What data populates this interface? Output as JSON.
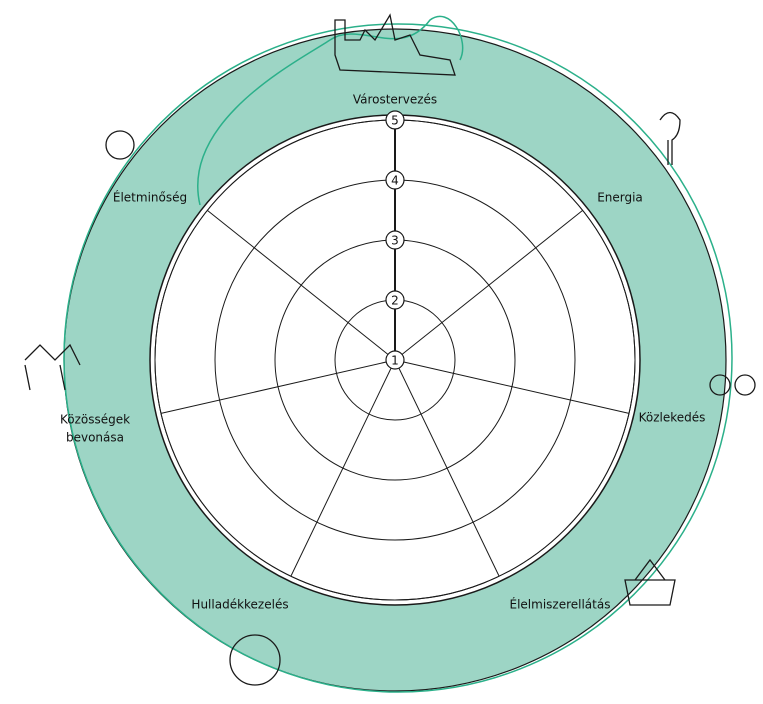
{
  "axes": [
    {
      "label": [
        "Várostervezés"
      ]
    },
    {
      "label": [
        "Energia"
      ]
    },
    {
      "label": [
        "Közlekedés"
      ]
    },
    {
      "label": [
        "Élelmiszerellátás"
      ]
    },
    {
      "label": [
        "Hulladékkezelés"
      ]
    },
    {
      "label": [
        "Közösségek",
        "bevonása"
      ]
    },
    {
      "label": [
        "Életminőség"
      ]
    }
  ],
  "scale": [
    1,
    2,
    3,
    4,
    5
  ]
}
